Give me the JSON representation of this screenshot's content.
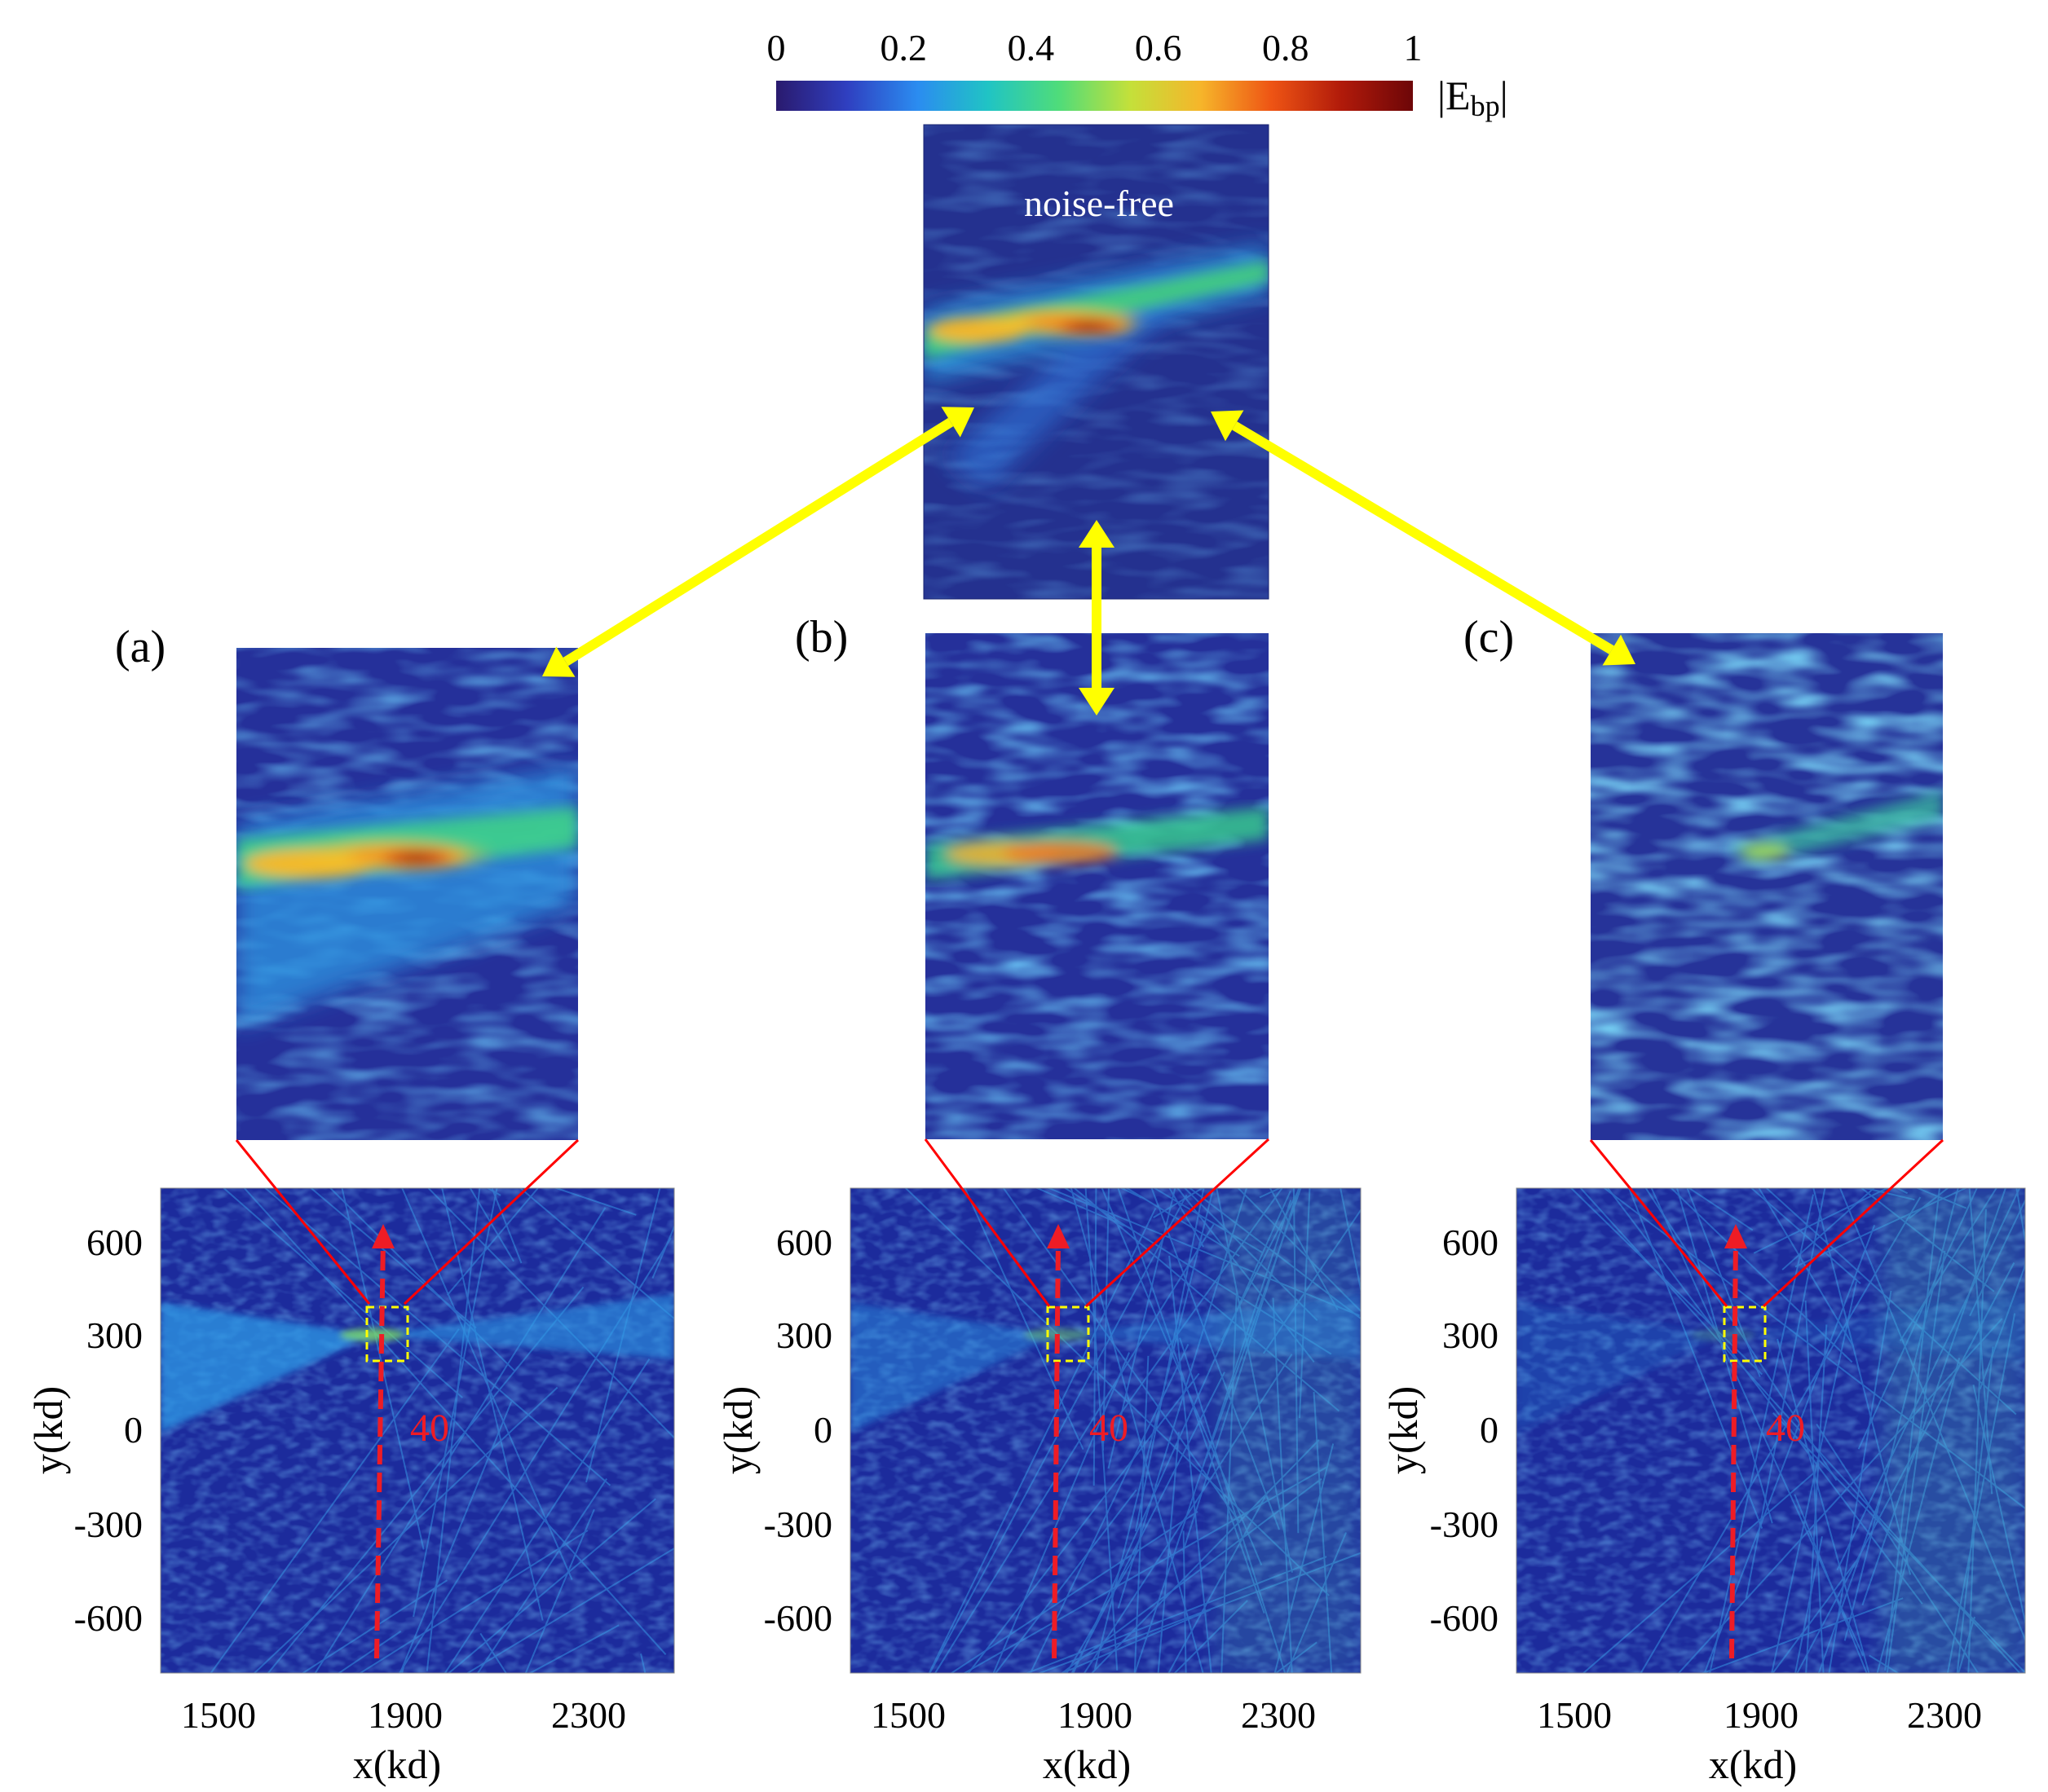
{
  "figure": {
    "colorbar": {
      "ticks": [
        "0",
        "0.2",
        "0.4",
        "0.6",
        "0.8",
        "1"
      ],
      "label_main": "|E",
      "label_sub": "bp",
      "label_end": "|",
      "colors": [
        "#2a1a6e",
        "#2f3fc0",
        "#2b8cf0",
        "#20c4c4",
        "#4fdc7a",
        "#c4e03a",
        "#f6b52a",
        "#ee5414",
        "#b01a0a",
        "#6d0608"
      ]
    },
    "noise_free": {
      "label": "noise-free"
    },
    "panels": [
      {
        "id": "a",
        "label": "(a)",
        "arrow_label": "40"
      },
      {
        "id": "b",
        "label": "(b)",
        "arrow_label": "40"
      },
      {
        "id": "c",
        "label": "(c)",
        "arrow_label": "40"
      }
    ],
    "axes": {
      "y_label": "y(kd)",
      "x_label": "x(kd)",
      "y_ticks": [
        "600",
        "300",
        "0",
        "-300",
        "-600"
      ],
      "x_ticks": [
        "1500",
        "1900",
        "2300"
      ]
    },
    "colors": {
      "connector": "#ffff00",
      "zoom_lines": "#ff0000",
      "dashed_arrow": "#ee1c25",
      "roi_box": "#ffff00",
      "map_base": "#1c2b9c"
    }
  }
}
